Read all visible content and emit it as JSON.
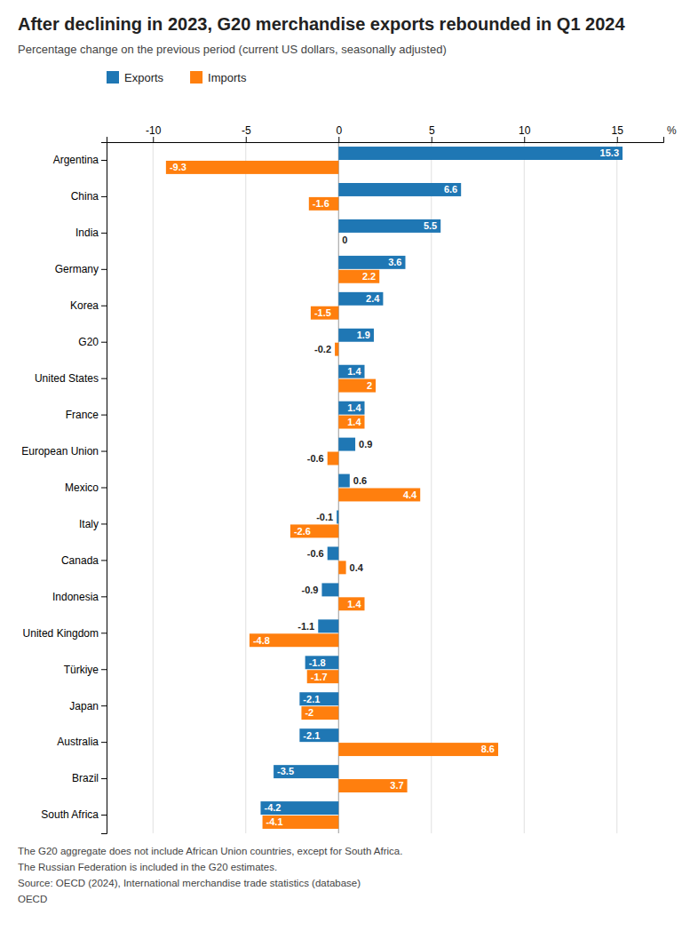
{
  "chart_data": {
    "type": "bar",
    "orientation": "horizontal",
    "title": "After declining in 2023, G20 merchandise exports rebounded in Q1 2024",
    "subtitle": "Percentage change on the previous period (current US dollars, seasonally adjusted)",
    "xlabel": "%",
    "categories": [
      "Argentina",
      "China",
      "India",
      "Germany",
      "Korea",
      "G20",
      "United States",
      "France",
      "European Union",
      "Mexico",
      "Italy",
      "Canada",
      "Indonesia",
      "United Kingdom",
      "Türkiye",
      "Japan",
      "Australia",
      "Brazil",
      "South Africa"
    ],
    "series": [
      {
        "name": "Exports",
        "values": [
          15.3,
          6.6,
          5.5,
          3.6,
          2.4,
          1.9,
          1.4,
          1.4,
          0.9,
          0.6,
          -0.1,
          -0.6,
          -0.9,
          -1.1,
          -1.8,
          -2.1,
          -2.1,
          -3.5,
          -4.2
        ]
      },
      {
        "name": "Imports",
        "values": [
          -9.3,
          -1.6,
          0.0,
          2.2,
          -1.5,
          -0.2,
          2.0,
          1.4,
          -0.6,
          4.4,
          -2.6,
          0.4,
          1.4,
          -4.8,
          -1.7,
          -2.0,
          8.6,
          3.7,
          -4.1
        ]
      }
    ],
    "xlim": [
      -12.5,
      17.5
    ],
    "xticks": [
      -10,
      -5,
      0,
      5,
      10,
      15
    ],
    "grid": true,
    "legend": "top",
    "data_labels": true,
    "annotations": [
      "The G20 aggregate does not include African Union countries, except for South Africa.",
      "The Russian Federation is included in the G20 estimates.",
      "Source: OECD (2024), International merchandise trade statistics (database)",
      "OECD"
    ]
  }
}
